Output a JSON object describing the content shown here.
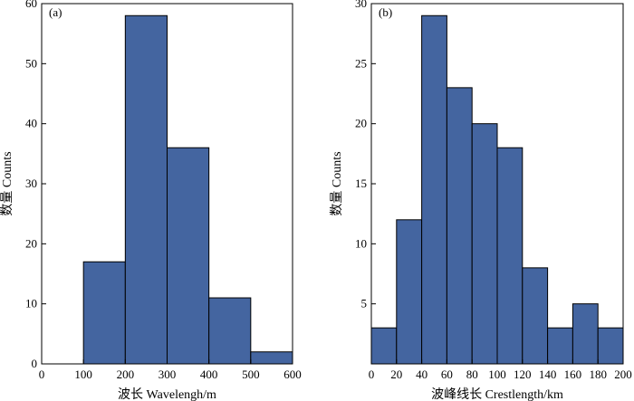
{
  "chart_data": [
    {
      "type": "bar",
      "panel_label": "(a)",
      "bin_edges": [
        0,
        100,
        200,
        300,
        400,
        500,
        600
      ],
      "counts": [
        0,
        17,
        58,
        36,
        11,
        2
      ],
      "xticks": [
        0,
        100,
        200,
        300,
        400,
        500,
        600
      ],
      "yticks": [
        0,
        10,
        20,
        30,
        40,
        50,
        60
      ],
      "xlim": [
        0,
        600
      ],
      "ylim": [
        0,
        60
      ],
      "xlabel": "波长 Wavelengh/m",
      "ylabel": "数量 Counts",
      "bar_color": "#4465a0"
    },
    {
      "type": "bar",
      "panel_label": "(b)",
      "bin_edges": [
        0,
        20,
        40,
        60,
        80,
        100,
        120,
        140,
        160,
        180,
        200
      ],
      "counts": [
        3,
        12,
        29,
        23,
        20,
        18,
        8,
        3,
        5,
        3
      ],
      "xticks": [
        0,
        20,
        40,
        60,
        80,
        100,
        120,
        140,
        160,
        180,
        200
      ],
      "yticks": [
        5,
        10,
        15,
        20,
        25,
        30
      ],
      "xlim": [
        0,
        200
      ],
      "ylim": [
        0,
        30
      ],
      "xlabel": "波峰线长 Crestlength/km",
      "ylabel": "数量 Counts",
      "bar_color": "#4465a0"
    }
  ]
}
